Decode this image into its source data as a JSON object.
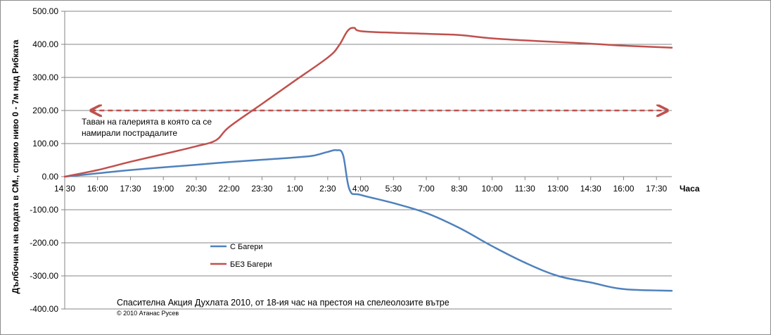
{
  "chart_data": {
    "type": "line",
    "ylabel": "Дълбочина на водата в СМ., спрямо ниво 0 -  7м над Рибката",
    "xlabel": "Часа",
    "ylim": [
      -400,
      500
    ],
    "y_ticks": [
      "500.00",
      "400.00",
      "300.00",
      "200.00",
      "100.00",
      "0.00",
      "-100.00",
      "-200.00",
      "-300.00",
      "-400.00"
    ],
    "y_tick_values": [
      500,
      400,
      300,
      200,
      100,
      0,
      -100,
      -200,
      -300,
      -400
    ],
    "categories": [
      "14:30",
      "16:00",
      "17:30",
      "19:00",
      "20:30",
      "22:00",
      "23:30",
      "1:00",
      "2:30",
      "4:00",
      "5:30",
      "7:00",
      "8:30",
      "10:00",
      "11:30",
      "13:00",
      "14:30",
      "16:00",
      "17:30"
    ],
    "x_hours": [
      0,
      1.5,
      3,
      4.5,
      6,
      7.5,
      9,
      10.5,
      12,
      13.5,
      15,
      16.5,
      18,
      19.5,
      21,
      22.5,
      24,
      25.5,
      27
    ],
    "x_max_hours": 27.7,
    "grid": "horizontal",
    "legend_position": "left-bottom",
    "series": [
      {
        "name": "С Багери",
        "color": "#4f81bd",
        "x": [
          0,
          1.5,
          3,
          4.5,
          6,
          7.5,
          9,
          10.5,
          11.3,
          12,
          12.4,
          12.7,
          13.0,
          13.5,
          15,
          16.5,
          18,
          19.5,
          21,
          22.5,
          24,
          25.5,
          27.7
        ],
        "values": [
          0,
          10,
          20,
          28,
          36,
          44,
          51,
          58,
          63,
          75,
          80,
          65,
          -40,
          -55,
          -80,
          -110,
          -155,
          -210,
          -260,
          -300,
          -320,
          -340,
          -345
        ]
      },
      {
        "name": "БЕЗ Багери",
        "color": "#c0504d",
        "x": [
          0,
          1.5,
          3,
          4.5,
          6,
          6.9,
          7.5,
          9,
          10.5,
          12,
          12.5,
          12.9,
          13.2,
          13.5,
          15,
          16.5,
          18,
          19.5,
          21,
          22.5,
          24,
          25.5,
          27.7
        ],
        "values": [
          0,
          20,
          45,
          68,
          92,
          110,
          150,
          220,
          290,
          360,
          395,
          440,
          450,
          440,
          435,
          432,
          428,
          418,
          412,
          407,
          402,
          396,
          390
        ]
      }
    ],
    "reference_line": {
      "value": 200,
      "x_from": 1.2,
      "x_to": 27.5,
      "color": "#c0504d",
      "style": "dashed-double-arrow",
      "label_lines": [
        "Таван на галерията в която са се",
        "намирали пострадалите"
      ]
    },
    "annotation": "Спасителна Акция Духлата 2010, от 18-ия час на престоя на спелеолозите вътре",
    "copyright": "© 2010 Атанас Русев"
  }
}
